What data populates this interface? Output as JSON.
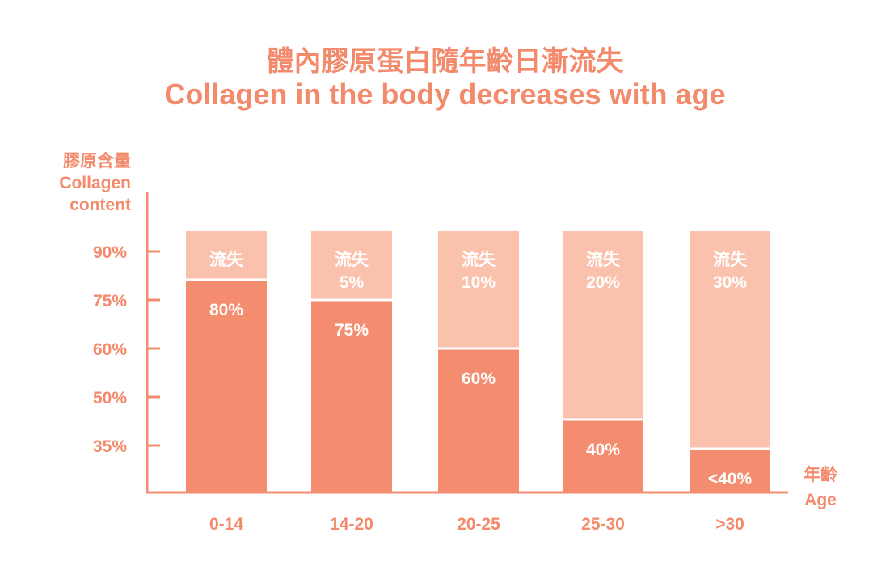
{
  "chart_data": {
    "type": "bar",
    "stacked": true,
    "title": "體內膠原蛋白隨年齡日漸流失",
    "subtitle": "Collagen in the body decreases with age",
    "ylabel": [
      "膠原含量",
      "Collagen",
      "content"
    ],
    "xlabel": [
      "年齡",
      "Age"
    ],
    "yticks": [
      {
        "value": 90,
        "label": "90%"
      },
      {
        "value": 75,
        "label": "75%"
      },
      {
        "value": 60,
        "label": "60%"
      },
      {
        "value": 50,
        "label": "50%"
      },
      {
        "value": 35,
        "label": "35%"
      }
    ],
    "categories": [
      "0-14",
      "14-20",
      "20-25",
      "25-30",
      ">30"
    ],
    "series": [
      {
        "name": "content",
        "values": [
          80,
          75,
          60,
          40,
          34
        ],
        "labels": [
          "80%",
          "75%",
          "60%",
          "40%",
          "<40%"
        ],
        "color": "#F48D6F"
      },
      {
        "name": "loss",
        "labels": [
          "流失",
          "流失\n5%",
          "流失\n10%",
          "流失\n20%",
          "流失\n30%"
        ],
        "color": "#FAC2AD"
      }
    ],
    "ylim": [
      20,
      100
    ],
    "grid": false
  }
}
